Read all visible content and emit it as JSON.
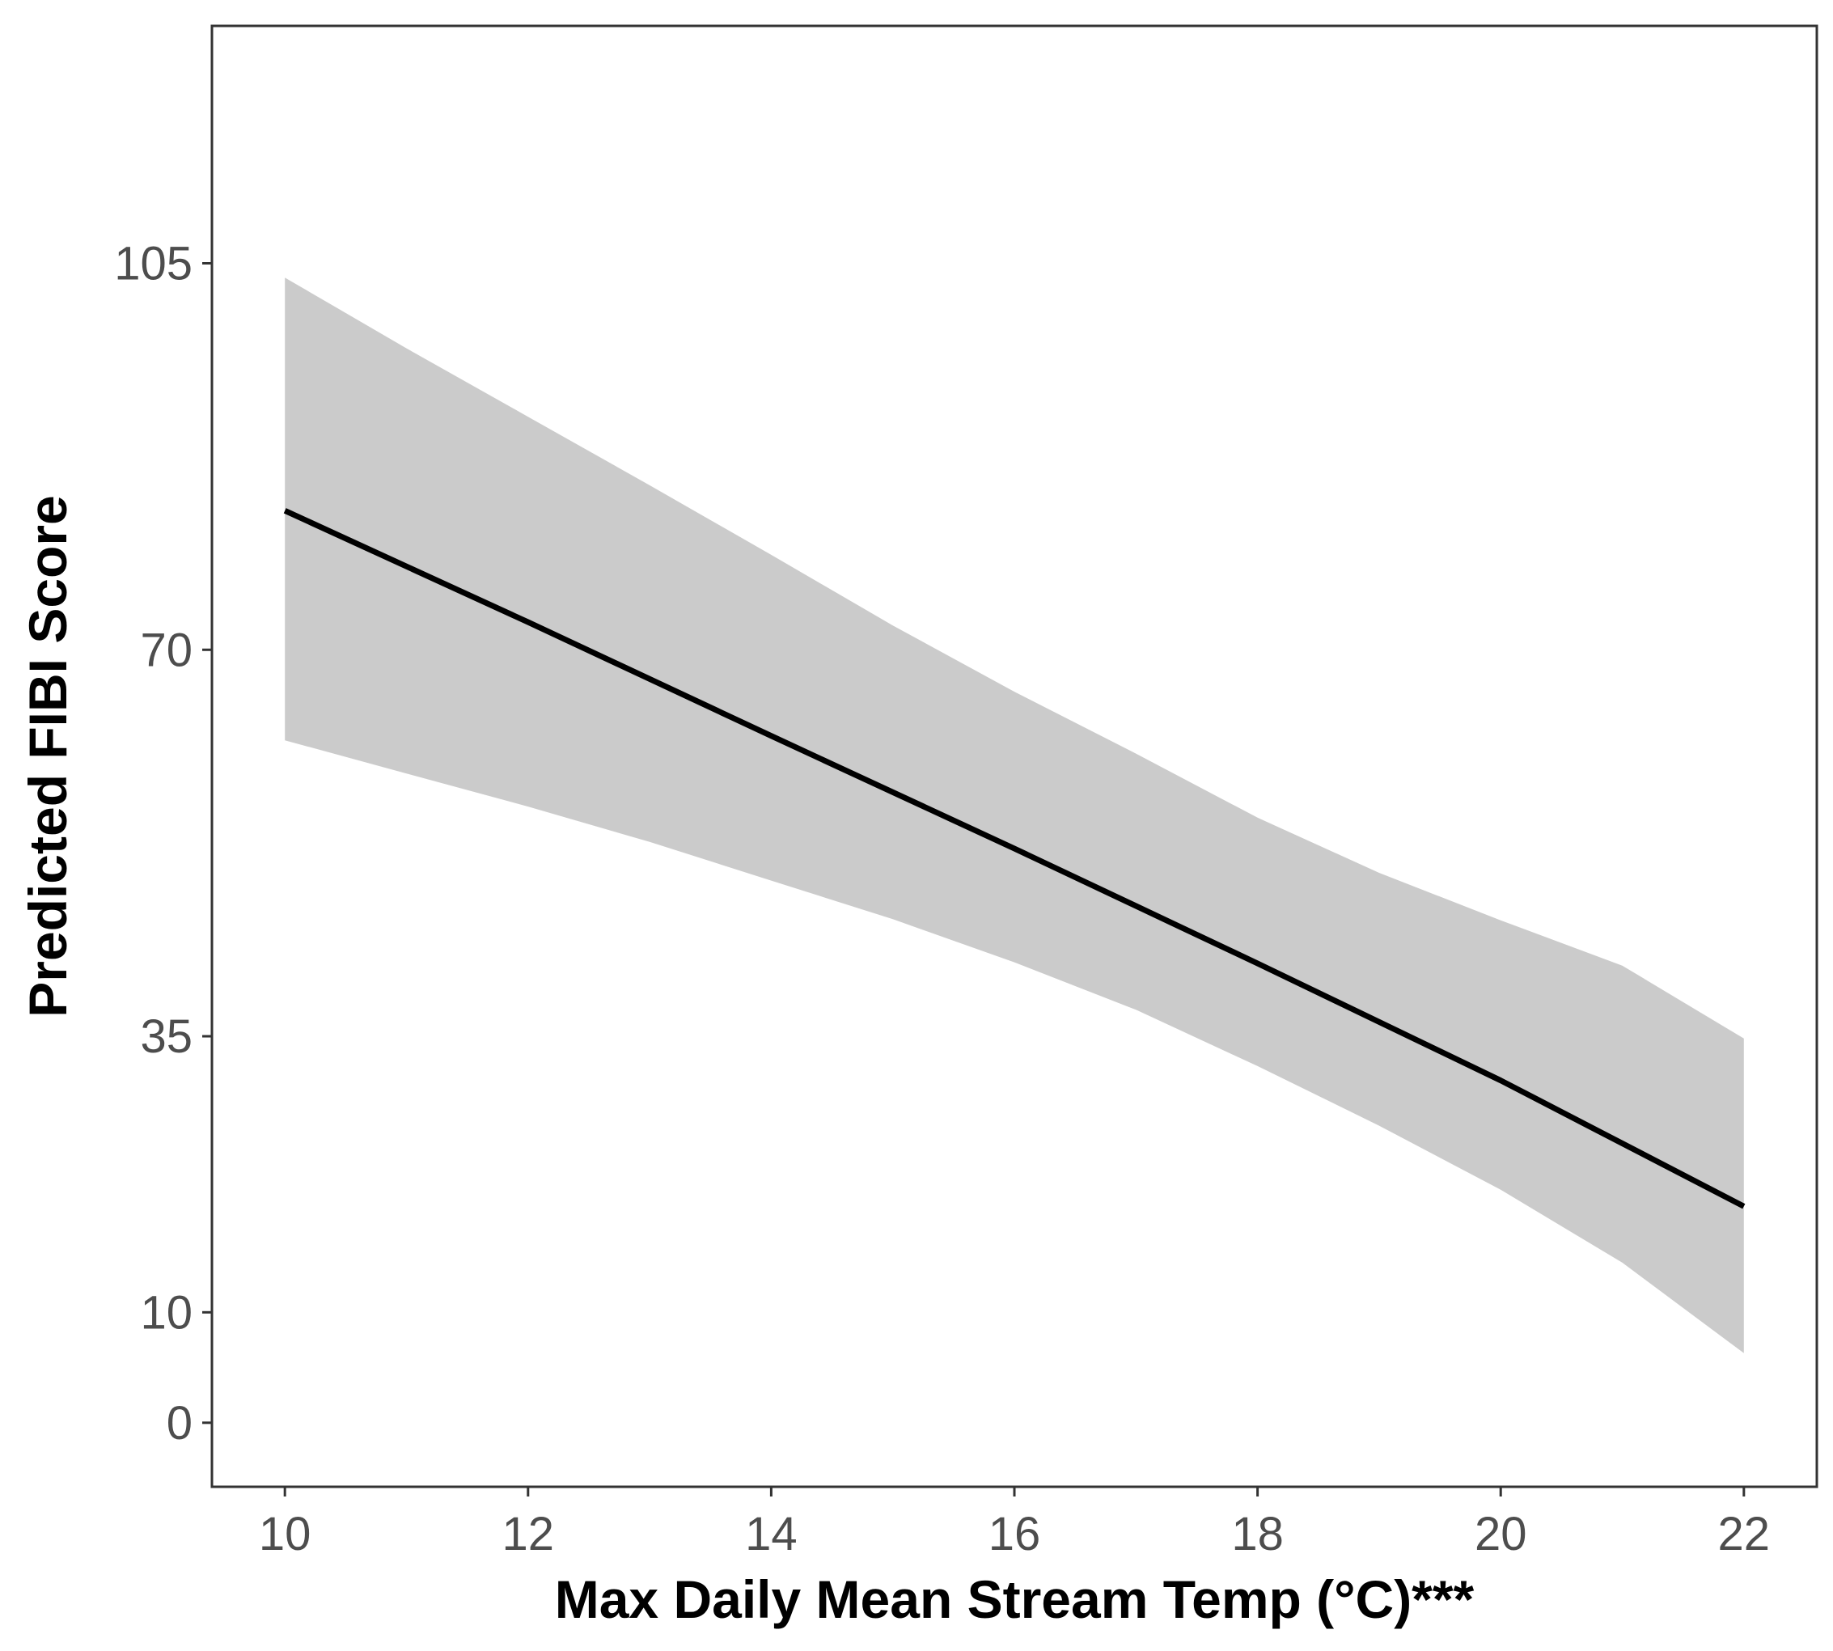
{
  "chart_data": {
    "type": "line",
    "title": "",
    "xlabel": "Max Daily Mean Stream Temp (°C)***",
    "ylabel": "Predicted FIBI Score",
    "xlim": [
      9.4,
      22.6
    ],
    "ylim": [
      -5.8,
      126.5
    ],
    "x_ticks": [
      10,
      12,
      14,
      16,
      18,
      20,
      22
    ],
    "x_tick_labels": [
      "10",
      "12",
      "14",
      "16",
      "18",
      "20",
      "22"
    ],
    "y_ticks": [
      0,
      10,
      35,
      70,
      105
    ],
    "y_tick_labels": [
      "0",
      "10",
      "35",
      "70",
      "105"
    ],
    "grid": false,
    "legend": "none",
    "series": [
      {
        "role": "fit",
        "x": [
          10,
          12,
          14,
          16,
          18,
          20,
          22
        ],
        "y": [
          82.6,
          72.5,
          62.2,
          52.0,
          41.6,
          31.0,
          19.6
        ],
        "color": "#000000"
      },
      {
        "role": "confidence-band",
        "x": [
          10,
          11,
          12,
          13,
          14,
          15,
          16,
          17,
          18,
          19,
          20,
          21,
          22
        ],
        "upper": [
          103.7,
          97.3,
          91.1,
          84.9,
          78.6,
          72.2,
          66.2,
          60.6,
          54.8,
          49.8,
          45.5,
          41.4,
          34.8
        ],
        "lower": [
          61.8,
          58.8,
          55.8,
          52.6,
          49.1,
          45.6,
          41.7,
          37.4,
          32.3,
          26.9,
          21.1,
          14.5,
          6.3
        ],
        "color": "#cbcbcb"
      }
    ]
  }
}
